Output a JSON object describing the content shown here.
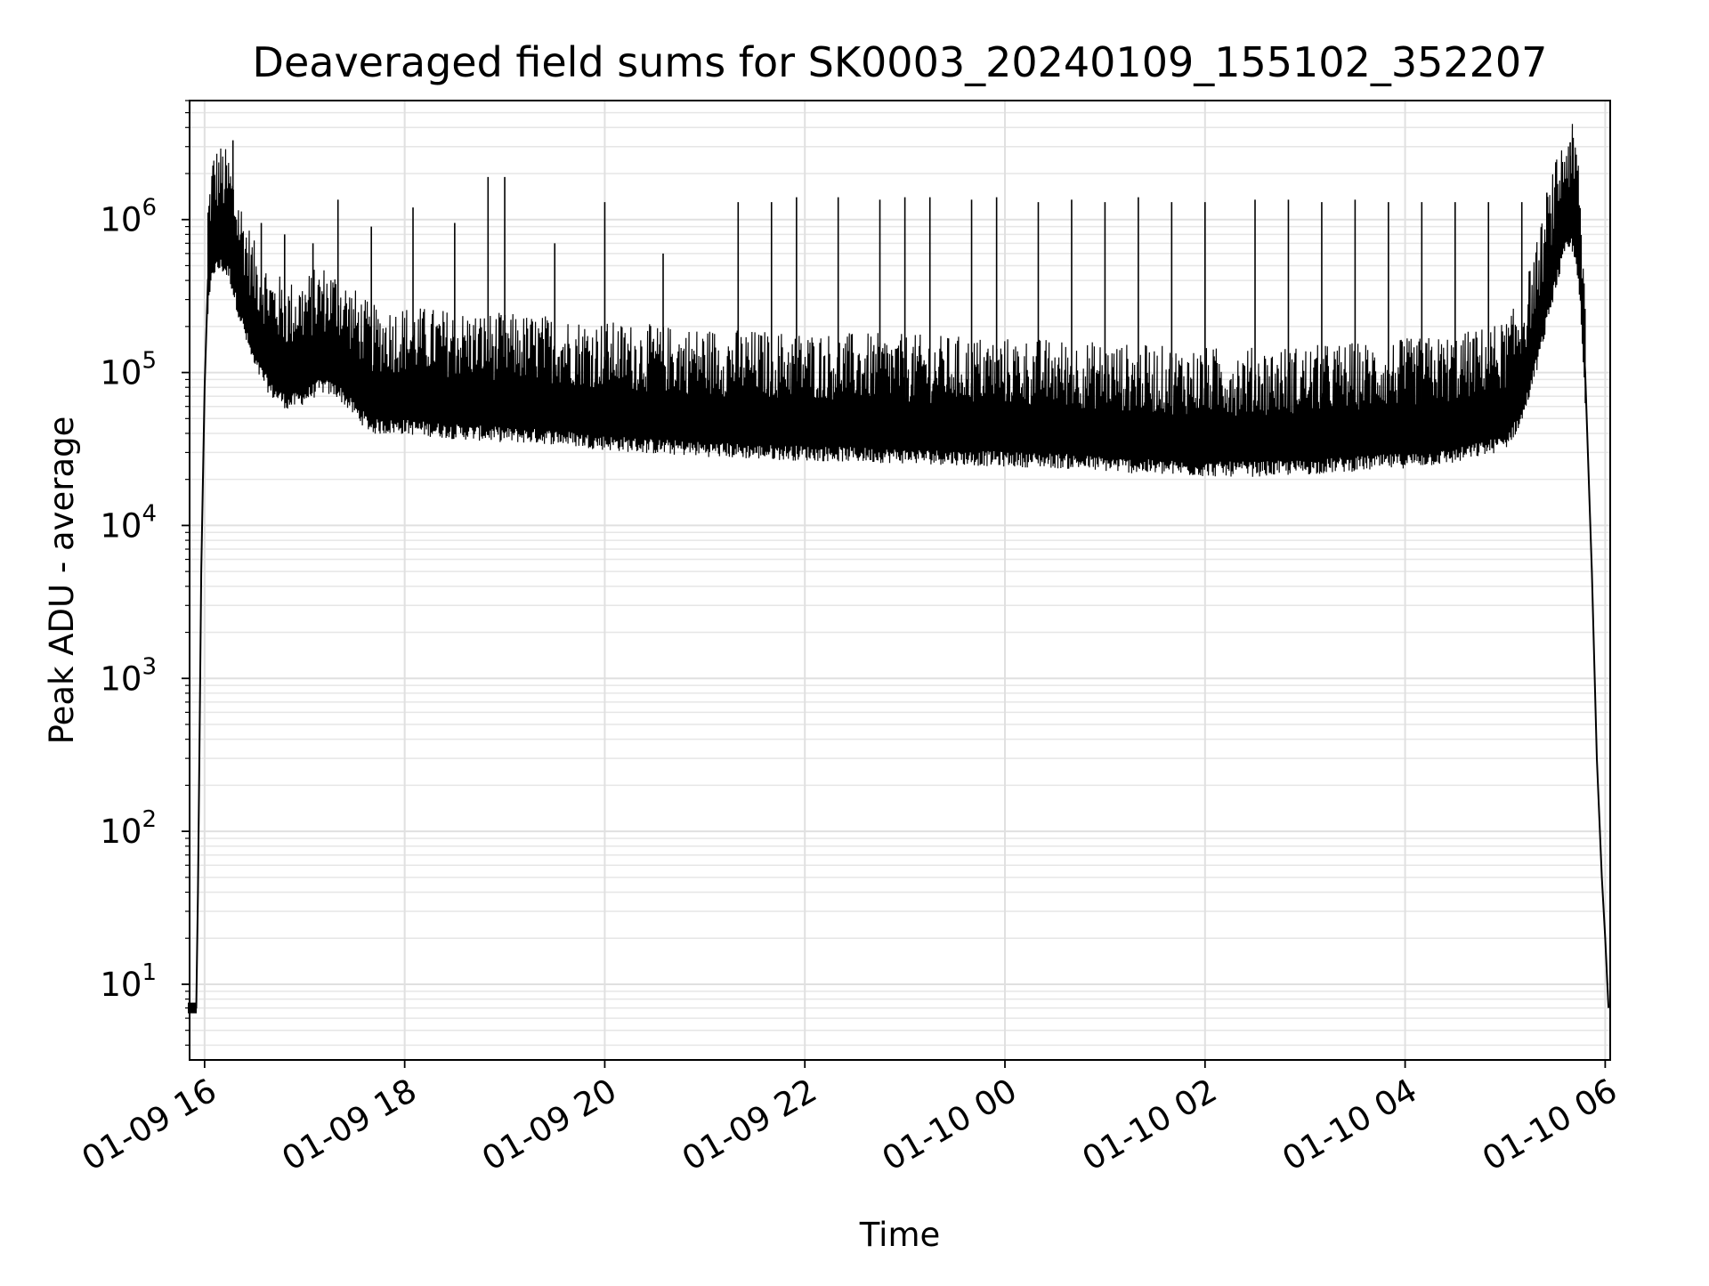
{
  "chart_data": {
    "type": "line",
    "title": "Deaveraged field sums for SK0003_20240109_155102_352207",
    "xlabel": "Time",
    "ylabel": "Peak ADU - average",
    "y_scale": "log",
    "ylim": [
      3.2,
      6000000
    ],
    "xlim": [
      "2024-01-09 15:51",
      "2024-01-10 06:03"
    ],
    "grid": true,
    "legend": "none",
    "line_color": "#000000",
    "x_ticks": [
      {
        "value": "2024-01-09 16:00",
        "label": "01-09 16"
      },
      {
        "value": "2024-01-09 18:00",
        "label": "01-09 18"
      },
      {
        "value": "2024-01-09 20:00",
        "label": "01-09 20"
      },
      {
        "value": "2024-01-09 22:00",
        "label": "01-09 22"
      },
      {
        "value": "2024-01-10 00:00",
        "label": "01-10 00"
      },
      {
        "value": "2024-01-10 02:00",
        "label": "01-10 02"
      },
      {
        "value": "2024-01-10 04:00",
        "label": "01-10 04"
      },
      {
        "value": "2024-01-10 06:00",
        "label": "01-10 06"
      }
    ],
    "y_ticks": [
      {
        "value": 10,
        "base": "10",
        "exp": "1"
      },
      {
        "value": 100,
        "base": "10",
        "exp": "2"
      },
      {
        "value": 1000,
        "base": "10",
        "exp": "3"
      },
      {
        "value": 10000,
        "base": "10",
        "exp": "4"
      },
      {
        "value": 100000,
        "base": "10",
        "exp": "5"
      },
      {
        "value": 1000000,
        "base": "10",
        "exp": "6"
      }
    ],
    "series": [
      {
        "x": [
          "2024-01-09 15:51",
          "2024-01-09 15:55",
          "2024-01-09 15:56",
          "2024-01-09 15:57",
          "2024-01-09 15:58",
          "2024-01-09 16:00",
          "2024-01-09 16:02",
          "2024-01-09 16:05",
          "2024-01-09 16:10",
          "2024-01-09 16:15",
          "2024-01-09 16:18",
          "2024-01-09 16:22",
          "2024-01-09 16:26",
          "2024-01-09 16:30",
          "2024-01-09 16:35",
          "2024-01-09 16:40",
          "2024-01-09 16:45",
          "2024-01-09 16:50",
          "2024-01-09 17:00",
          "2024-01-09 17:10",
          "2024-01-09 17:20",
          "2024-01-09 17:30",
          "2024-01-09 17:40",
          "2024-01-09 17:50",
          "2024-01-09 18:00",
          "2024-01-09 18:30",
          "2024-01-09 19:00",
          "2024-01-09 19:30",
          "2024-01-09 20:00",
          "2024-01-09 20:30",
          "2024-01-09 21:00",
          "2024-01-09 21:30",
          "2024-01-09 22:00",
          "2024-01-09 22:30",
          "2024-01-09 23:00",
          "2024-01-09 23:30",
          "2024-01-10 00:00",
          "2024-01-10 00:30",
          "2024-01-10 01:00",
          "2024-01-10 01:30",
          "2024-01-10 02:00",
          "2024-01-10 02:30",
          "2024-01-10 03:00",
          "2024-01-10 03:30",
          "2024-01-10 04:00",
          "2024-01-10 04:30",
          "2024-01-10 05:00",
          "2024-01-10 05:10",
          "2024-01-10 05:20",
          "2024-01-10 05:30",
          "2024-01-10 05:36",
          "2024-01-10 05:40",
          "2024-01-10 05:44",
          "2024-01-10 05:48",
          "2024-01-10 05:52",
          "2024-01-10 05:55",
          "2024-01-10 05:58",
          "2024-01-10 06:00",
          "2024-01-10 06:02"
        ],
        "values": [
          7,
          7,
          40,
          400,
          5000,
          80000,
          400000,
          750000,
          800000,
          700000,
          500000,
          350000,
          250000,
          180000,
          150000,
          120000,
          110000,
          100000,
          110000,
          130000,
          120000,
          90000,
          70000,
          70000,
          70000,
          65000,
          62000,
          60000,
          55000,
          52000,
          50000,
          48000,
          47000,
          46000,
          45000,
          44000,
          43000,
          42000,
          40000,
          38000,
          37000,
          37000,
          38000,
          40000,
          42000,
          45000,
          55000,
          80000,
          200000,
          600000,
          1000000,
          1100000,
          700000,
          100000,
          5000,
          300,
          50,
          20,
          7
        ]
      }
    ],
    "spikes": [
      {
        "x": "2024-01-09 16:17",
        "y": 3300000
      },
      {
        "x": "2024-01-09 16:34",
        "y": 950000
      },
      {
        "x": "2024-01-09 16:48",
        "y": 800000
      },
      {
        "x": "2024-01-09 17:05",
        "y": 700000
      },
      {
        "x": "2024-01-09 17:20",
        "y": 1350000
      },
      {
        "x": "2024-01-09 17:40",
        "y": 900000
      },
      {
        "x": "2024-01-09 18:05",
        "y": 1200000
      },
      {
        "x": "2024-01-09 18:30",
        "y": 950000
      },
      {
        "x": "2024-01-09 18:50",
        "y": 1900000
      },
      {
        "x": "2024-01-09 19:00",
        "y": 1900000
      },
      {
        "x": "2024-01-09 19:30",
        "y": 700000
      },
      {
        "x": "2024-01-09 20:00",
        "y": 1300000
      },
      {
        "x": "2024-01-09 20:35",
        "y": 600000
      },
      {
        "x": "2024-01-09 21:20",
        "y": 1300000
      },
      {
        "x": "2024-01-09 21:40",
        "y": 1300000
      },
      {
        "x": "2024-01-09 21:55",
        "y": 1400000
      },
      {
        "x": "2024-01-09 22:20",
        "y": 1400000
      },
      {
        "x": "2024-01-09 22:45",
        "y": 1350000
      },
      {
        "x": "2024-01-09 23:00",
        "y": 1400000
      },
      {
        "x": "2024-01-09 23:15",
        "y": 1400000
      },
      {
        "x": "2024-01-09 23:40",
        "y": 1350000
      },
      {
        "x": "2024-01-09 23:55",
        "y": 1400000
      },
      {
        "x": "2024-01-10 00:20",
        "y": 1300000
      },
      {
        "x": "2024-01-10 00:40",
        "y": 1350000
      },
      {
        "x": "2024-01-10 01:00",
        "y": 1300000
      },
      {
        "x": "2024-01-10 01:20",
        "y": 1400000
      },
      {
        "x": "2024-01-10 01:40",
        "y": 1300000
      },
      {
        "x": "2024-01-10 02:00",
        "y": 1300000
      },
      {
        "x": "2024-01-10 02:30",
        "y": 1350000
      },
      {
        "x": "2024-01-10 02:50",
        "y": 1350000
      },
      {
        "x": "2024-01-10 03:10",
        "y": 1300000
      },
      {
        "x": "2024-01-10 03:30",
        "y": 1350000
      },
      {
        "x": "2024-01-10 03:50",
        "y": 1300000
      },
      {
        "x": "2024-01-10 04:10",
        "y": 1300000
      },
      {
        "x": "2024-01-10 04:30",
        "y": 1300000
      },
      {
        "x": "2024-01-10 04:50",
        "y": 1300000
      },
      {
        "x": "2024-01-10 05:10",
        "y": 1300000
      },
      {
        "x": "2024-01-10 05:25",
        "y": 1500000
      },
      {
        "x": "2024-01-10 05:39",
        "y": 3200000
      }
    ]
  }
}
